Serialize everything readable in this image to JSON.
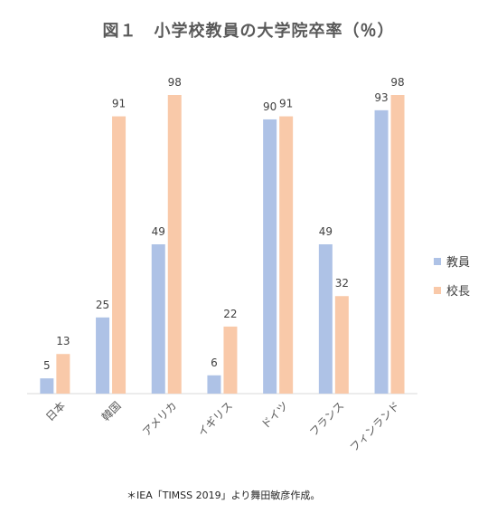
{
  "chart_data": {
    "type": "bar",
    "title": "図１　小学校教員の大学院卒率（％）",
    "categories": [
      "日本",
      "韓国",
      "アメリカ",
      "イギリス",
      "ドイツ",
      "フランス",
      "フィンランド"
    ],
    "series": [
      {
        "name": "教員",
        "values": [
          5,
          25,
          49,
          6,
          90,
          49,
          93
        ],
        "color": "#aec2e6"
      },
      {
        "name": "校長",
        "values": [
          13,
          91,
          98,
          22,
          91,
          32,
          98
        ],
        "color": "#f9c9a9"
      }
    ],
    "ylim": [
      0,
      100
    ],
    "grid": false,
    "legend_position": "right",
    "xlabel": "",
    "ylabel": ""
  },
  "source_note": "＊IEA「TIMSS 2019」より舞田敏彦作成。"
}
